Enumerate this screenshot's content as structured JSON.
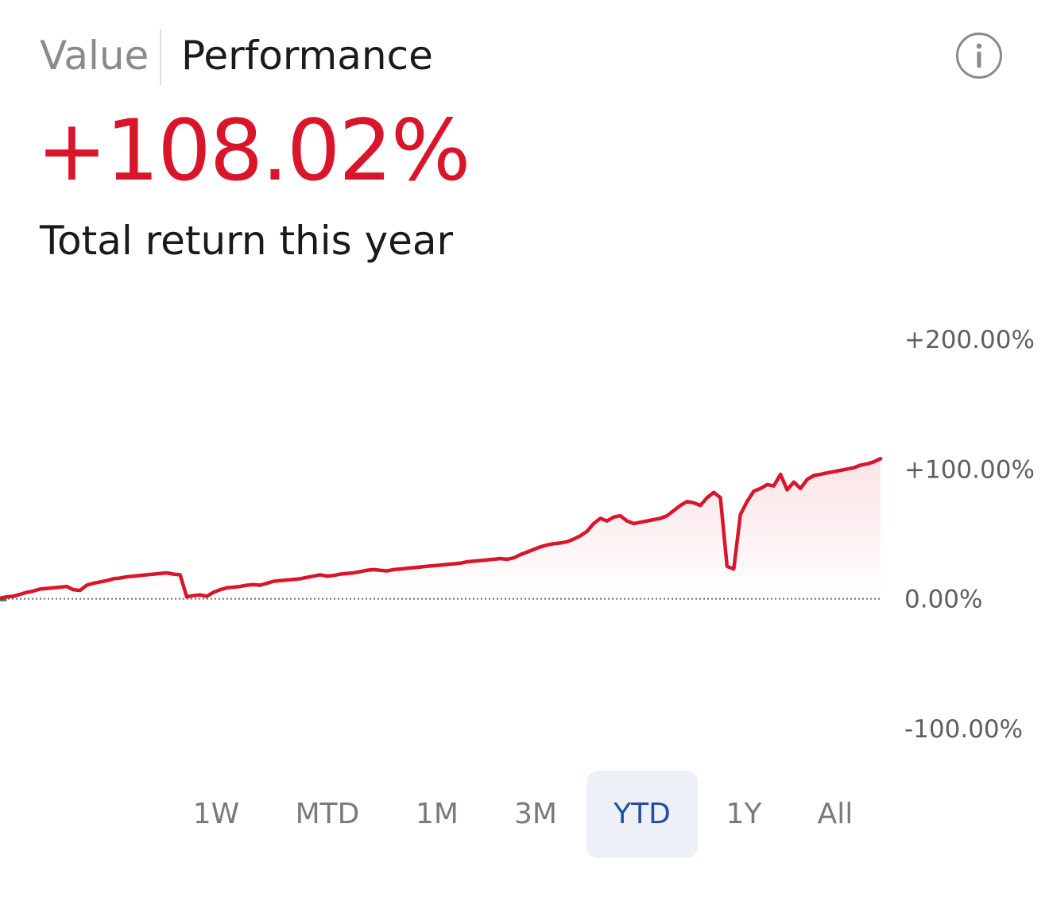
{
  "tabs": {
    "value_label": "Value",
    "performance_label": "Performance",
    "active": "Performance"
  },
  "summary": {
    "total_return": "+108.02%",
    "caption": "Total return this year"
  },
  "colors": {
    "negative_accent": "#d9152b",
    "positive_start_line": "#1e8a3a",
    "active_range_text": "#1f4fa8",
    "active_range_bg": "#edf1f7",
    "muted_text": "#7a7a7a"
  },
  "icons": {
    "info": "info-icon"
  },
  "chart_data": {
    "type": "area",
    "y_tick_labels": [
      "+200.00%",
      "+100.00%",
      "0.00%",
      "-100.00%"
    ],
    "ylim": [
      -100,
      200
    ],
    "baseline": 0,
    "baseline_style": "dotted",
    "grid": false,
    "series": [
      {
        "values": [
          0.5,
          1.5,
          2.0,
          3.5,
          5.0,
          6.0,
          7.5,
          8.0,
          8.5,
          9.0,
          9.5,
          7.0,
          6.5,
          10.5,
          12.0,
          13.0,
          14.0,
          15.5,
          16.0,
          17.0,
          17.5,
          18.0,
          18.5,
          19.0,
          19.5,
          20.0,
          19.0,
          18.5,
          1.5,
          2.5,
          3.0,
          2.0,
          5.0,
          7.0,
          8.5,
          9.0,
          9.5,
          10.5,
          11.0,
          10.5,
          12.0,
          13.5,
          14.0,
          14.5,
          15.0,
          15.5,
          16.5,
          17.5,
          18.5,
          17.5,
          18.0,
          19.0,
          19.5,
          20.0,
          21.0,
          22.0,
          22.5,
          22.0,
          21.5,
          22.5,
          23.0,
          23.5,
          24.0,
          24.5,
          25.0,
          25.5,
          26.0,
          26.5,
          27.0,
          27.5,
          28.5,
          29.0,
          29.5,
          30.0,
          30.5,
          31.0,
          30.5,
          31.5,
          34.0,
          36.0,
          38.0,
          40.0,
          41.5,
          42.5,
          43.0,
          44.0,
          46.0,
          48.5,
          52.0,
          58.0,
          62.0,
          60.0,
          63.0,
          64.0,
          60.0,
          58.0,
          59.0,
          60.0,
          61.0,
          62.0,
          64.0,
          68.0,
          72.0,
          75.0,
          74.0,
          72.0,
          78.0,
          82.0,
          78.0,
          25.0,
          23.0,
          65.0,
          75.0,
          83.0,
          85.0,
          88.0,
          87.0,
          96.0,
          84.0,
          90.0,
          85.0,
          92.0,
          95.0,
          96.0,
          97.0,
          98.0,
          99.0,
          100.0,
          101.0,
          103.0,
          104.0,
          105.5,
          108.02
        ]
      }
    ]
  },
  "ranges": {
    "items": [
      "1W",
      "MTD",
      "1M",
      "3M",
      "YTD",
      "1Y",
      "All"
    ],
    "active": "YTD"
  }
}
